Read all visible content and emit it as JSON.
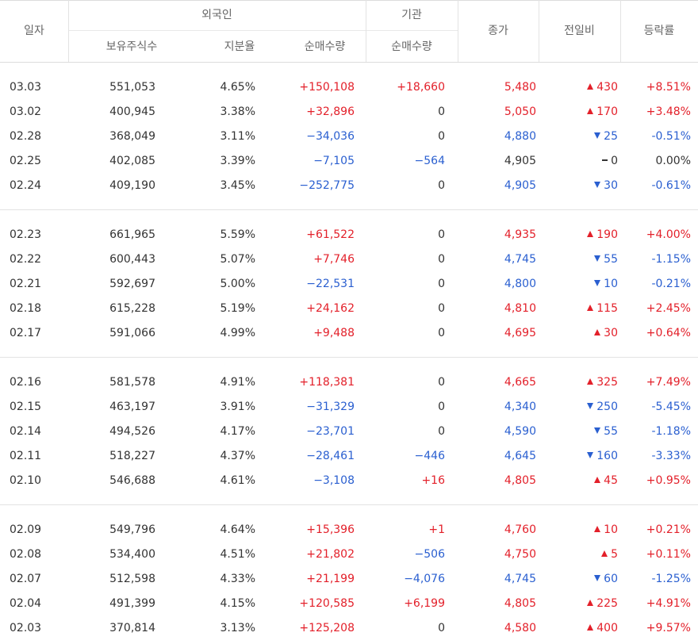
{
  "header": {
    "date": "일자",
    "foreign": "외국인",
    "foreign_holding": "보유주식수",
    "foreign_ratio": "지분율",
    "foreign_net": "순매수량",
    "institution": "기관",
    "institution_net": "순매수량",
    "close": "종가",
    "change": "전일비",
    "rate": "등락률"
  },
  "colors": {
    "up": "#e3202a",
    "down": "#2a5fd0",
    "flat": "#333333"
  },
  "groups": [
    [
      {
        "date": "03.03",
        "holding": "551,053",
        "ratio": "4.65%",
        "fnet": "+150,108",
        "inet": "+18,660",
        "close": "5,480",
        "dir": "up",
        "change": "430",
        "rate": "+8.51%"
      },
      {
        "date": "03.02",
        "holding": "400,945",
        "ratio": "3.38%",
        "fnet": "+32,896",
        "inet": "0",
        "close": "5,050",
        "dir": "up",
        "change": "170",
        "rate": "+3.48%"
      },
      {
        "date": "02.28",
        "holding": "368,049",
        "ratio": "3.11%",
        "fnet": "−34,036",
        "inet": "0",
        "close": "4,880",
        "dir": "down",
        "change": "25",
        "rate": "-0.51%"
      },
      {
        "date": "02.25",
        "holding": "402,085",
        "ratio": "3.39%",
        "fnet": "−7,105",
        "inet": "−564",
        "close": "4,905",
        "dir": "flat",
        "change": "0",
        "rate": "0.00%"
      },
      {
        "date": "02.24",
        "holding": "409,190",
        "ratio": "3.45%",
        "fnet": "−252,775",
        "inet": "0",
        "close": "4,905",
        "dir": "down",
        "change": "30",
        "rate": "-0.61%"
      }
    ],
    [
      {
        "date": "02.23",
        "holding": "661,965",
        "ratio": "5.59%",
        "fnet": "+61,522",
        "inet": "0",
        "close": "4,935",
        "dir": "up",
        "change": "190",
        "rate": "+4.00%"
      },
      {
        "date": "02.22",
        "holding": "600,443",
        "ratio": "5.07%",
        "fnet": "+7,746",
        "inet": "0",
        "close": "4,745",
        "dir": "down",
        "change": "55",
        "rate": "-1.15%"
      },
      {
        "date": "02.21",
        "holding": "592,697",
        "ratio": "5.00%",
        "fnet": "−22,531",
        "inet": "0",
        "close": "4,800",
        "dir": "down",
        "change": "10",
        "rate": "-0.21%"
      },
      {
        "date": "02.18",
        "holding": "615,228",
        "ratio": "5.19%",
        "fnet": "+24,162",
        "inet": "0",
        "close": "4,810",
        "dir": "up",
        "change": "115",
        "rate": "+2.45%"
      },
      {
        "date": "02.17",
        "holding": "591,066",
        "ratio": "4.99%",
        "fnet": "+9,488",
        "inet": "0",
        "close": "4,695",
        "dir": "up",
        "change": "30",
        "rate": "+0.64%"
      }
    ],
    [
      {
        "date": "02.16",
        "holding": "581,578",
        "ratio": "4.91%",
        "fnet": "+118,381",
        "inet": "0",
        "close": "4,665",
        "dir": "up",
        "change": "325",
        "rate": "+7.49%"
      },
      {
        "date": "02.15",
        "holding": "463,197",
        "ratio": "3.91%",
        "fnet": "−31,329",
        "inet": "0",
        "close": "4,340",
        "dir": "down",
        "change": "250",
        "rate": "-5.45%"
      },
      {
        "date": "02.14",
        "holding": "494,526",
        "ratio": "4.17%",
        "fnet": "−23,701",
        "inet": "0",
        "close": "4,590",
        "dir": "down",
        "change": "55",
        "rate": "-1.18%"
      },
      {
        "date": "02.11",
        "holding": "518,227",
        "ratio": "4.37%",
        "fnet": "−28,461",
        "inet": "−446",
        "close": "4,645",
        "dir": "down",
        "change": "160",
        "rate": "-3.33%"
      },
      {
        "date": "02.10",
        "holding": "546,688",
        "ratio": "4.61%",
        "fnet": "−3,108",
        "inet": "+16",
        "close": "4,805",
        "dir": "up",
        "change": "45",
        "rate": "+0.95%"
      }
    ],
    [
      {
        "date": "02.09",
        "holding": "549,796",
        "ratio": "4.64%",
        "fnet": "+15,396",
        "inet": "+1",
        "close": "4,760",
        "dir": "up",
        "change": "10",
        "rate": "+0.21%"
      },
      {
        "date": "02.08",
        "holding": "534,400",
        "ratio": "4.51%",
        "fnet": "+21,802",
        "inet": "−506",
        "close": "4,750",
        "dir": "up",
        "change": "5",
        "rate": "+0.11%"
      },
      {
        "date": "02.07",
        "holding": "512,598",
        "ratio": "4.33%",
        "fnet": "+21,199",
        "inet": "−4,076",
        "close": "4,745",
        "dir": "down",
        "change": "60",
        "rate": "-1.25%"
      },
      {
        "date": "02.04",
        "holding": "491,399",
        "ratio": "4.15%",
        "fnet": "+120,585",
        "inet": "+6,199",
        "close": "4,805",
        "dir": "up",
        "change": "225",
        "rate": "+4.91%"
      },
      {
        "date": "02.03",
        "holding": "370,814",
        "ratio": "3.13%",
        "fnet": "+125,208",
        "inet": "0",
        "close": "4,580",
        "dir": "up",
        "change": "400",
        "rate": "+9.57%"
      }
    ]
  ]
}
